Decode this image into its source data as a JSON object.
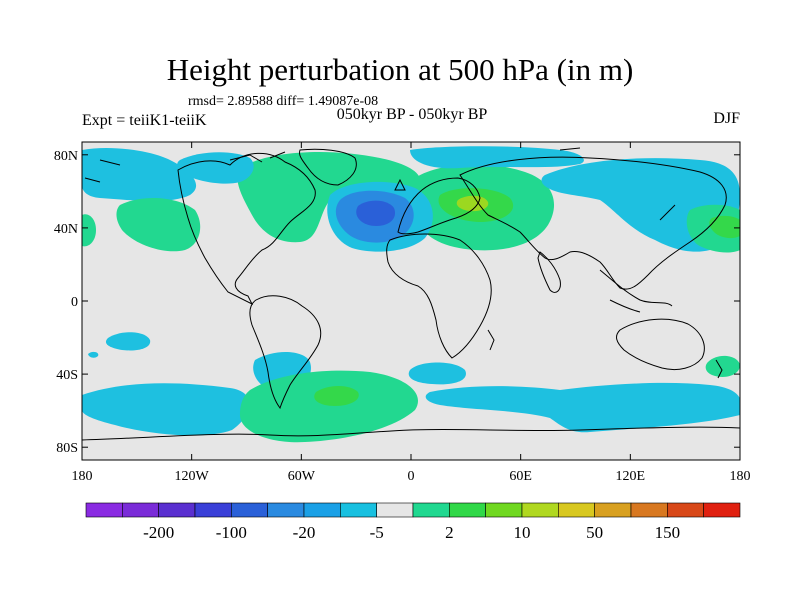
{
  "title": "Height perturbation at 500 hPa (in m)",
  "stats": "rmsd= 2.89588 diff= 1.49087e-08",
  "subtitle": "050kyr BP - 050kyr BP",
  "left_label": "Expt = teiiK1-teiiK",
  "right_label": "DJF",
  "lat_ticks": [
    {
      "value": 80,
      "label": "80N"
    },
    {
      "value": 40,
      "label": "40N"
    },
    {
      "value": 0,
      "label": "0"
    },
    {
      "value": -40,
      "label": "40S"
    },
    {
      "value": -80,
      "label": "80S"
    }
  ],
  "lon_ticks": [
    {
      "value": -180,
      "label": "180"
    },
    {
      "value": -120,
      "label": "120W"
    },
    {
      "value": -60,
      "label": "60W"
    },
    {
      "value": 0,
      "label": "0"
    },
    {
      "value": 60,
      "label": "60E"
    },
    {
      "value": 120,
      "label": "120E"
    },
    {
      "value": 180,
      "label": "180"
    }
  ],
  "colorbar": {
    "colors": [
      "#8a2be2",
      "#7a2bd8",
      "#5a2fd0",
      "#3a3fd8",
      "#2a60d8",
      "#2a8ae0",
      "#1aa0e6",
      "#18c0e0",
      "#e6e6e6",
      "#20d890",
      "#30d848",
      "#70d820",
      "#b0d820",
      "#d8c820",
      "#d8a020",
      "#d87820",
      "#d84818",
      "#e02010"
    ],
    "labels": [
      {
        "after_index": 1,
        "label": "-200"
      },
      {
        "after_index": 3,
        "label": "-100"
      },
      {
        "after_index": 5,
        "label": "-20"
      },
      {
        "after_index": 7,
        "label": "-5"
      },
      {
        "after_index": 9,
        "label": "2"
      },
      {
        "after_index": 11,
        "label": "10"
      },
      {
        "after_index": 13,
        "label": "50"
      },
      {
        "after_index": 15,
        "label": "150"
      }
    ]
  },
  "field_colors": {
    "background": "#e6e6e6",
    "light_blue": "#1ec0e0",
    "mid_blue": "#2a8ae0",
    "dark_blue": "#2a60d8",
    "light_green": "#22d890",
    "mid_green": "#34d84a",
    "yellow_green": "#9cd820"
  }
}
